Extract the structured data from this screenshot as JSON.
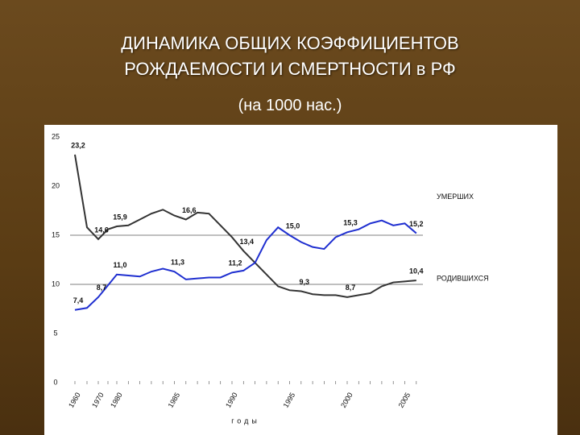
{
  "chart_data": {
    "type": "line",
    "title": "ДИНАМИКА ОБЩИХ КОЭФФИЦИЕНТОВ\nРОЖДАЕМОСТИ И СМЕРТНОСТИ в РФ",
    "subtitle": "(на 1000 нас.)",
    "x_label": "годы",
    "categories": [
      "1960",
      null,
      "1970",
      null,
      "1980",
      null,
      null,
      null,
      null,
      "1985",
      null,
      null,
      null,
      null,
      "1990",
      null,
      null,
      null,
      null,
      "1995",
      null,
      null,
      null,
      null,
      "2000",
      null,
      null,
      null,
      null,
      "2005",
      null
    ],
    "series": [
      {
        "name": "РОДИВШИХСЯ",
        "color": "#333333",
        "values": [
          23.2,
          15.8,
          14.6,
          15.6,
          15.9,
          16.0,
          16.6,
          17.2,
          17.6,
          17.0,
          16.6,
          17.3,
          17.2,
          16.0,
          14.8,
          13.4,
          12.2,
          11.0,
          9.8,
          9.4,
          9.3,
          9.0,
          8.9,
          8.9,
          8.7,
          8.9,
          9.1,
          9.8,
          10.2,
          10.3,
          10.4
        ],
        "value_labels": [
          "23,2",
          null,
          "14,6",
          null,
          "15,9",
          null,
          null,
          null,
          null,
          null,
          "16,6",
          null,
          null,
          null,
          null,
          "13,4",
          null,
          null,
          null,
          null,
          "9,3",
          null,
          null,
          null,
          "8,7",
          null,
          null,
          null,
          null,
          null,
          "10,4"
        ]
      },
      {
        "name": "УМЕРШИХ",
        "color": "#1f2fd0",
        "values": [
          7.4,
          7.6,
          8.7,
          9.9,
          11.0,
          10.9,
          10.8,
          11.3,
          11.6,
          11.3,
          10.5,
          10.6,
          10.7,
          10.7,
          11.2,
          11.4,
          12.2,
          14.5,
          15.8,
          15.0,
          14.3,
          13.8,
          13.6,
          14.8,
          15.3,
          15.6,
          16.2,
          16.5,
          16.0,
          16.2,
          15.2
        ],
        "value_labels": [
          "7,4",
          null,
          "8,7",
          null,
          "11,0",
          null,
          null,
          null,
          null,
          "11,3",
          null,
          null,
          null,
          null,
          "11,2",
          null,
          null,
          null,
          null,
          "15,0",
          null,
          null,
          null,
          null,
          "15,3",
          null,
          null,
          null,
          null,
          null,
          "15,2"
        ]
      }
    ],
    "ylim": [
      0,
      25
    ],
    "yticks": [
      0,
      5,
      10,
      15,
      20,
      25
    ],
    "grid_lines": [
      10,
      15
    ]
  }
}
